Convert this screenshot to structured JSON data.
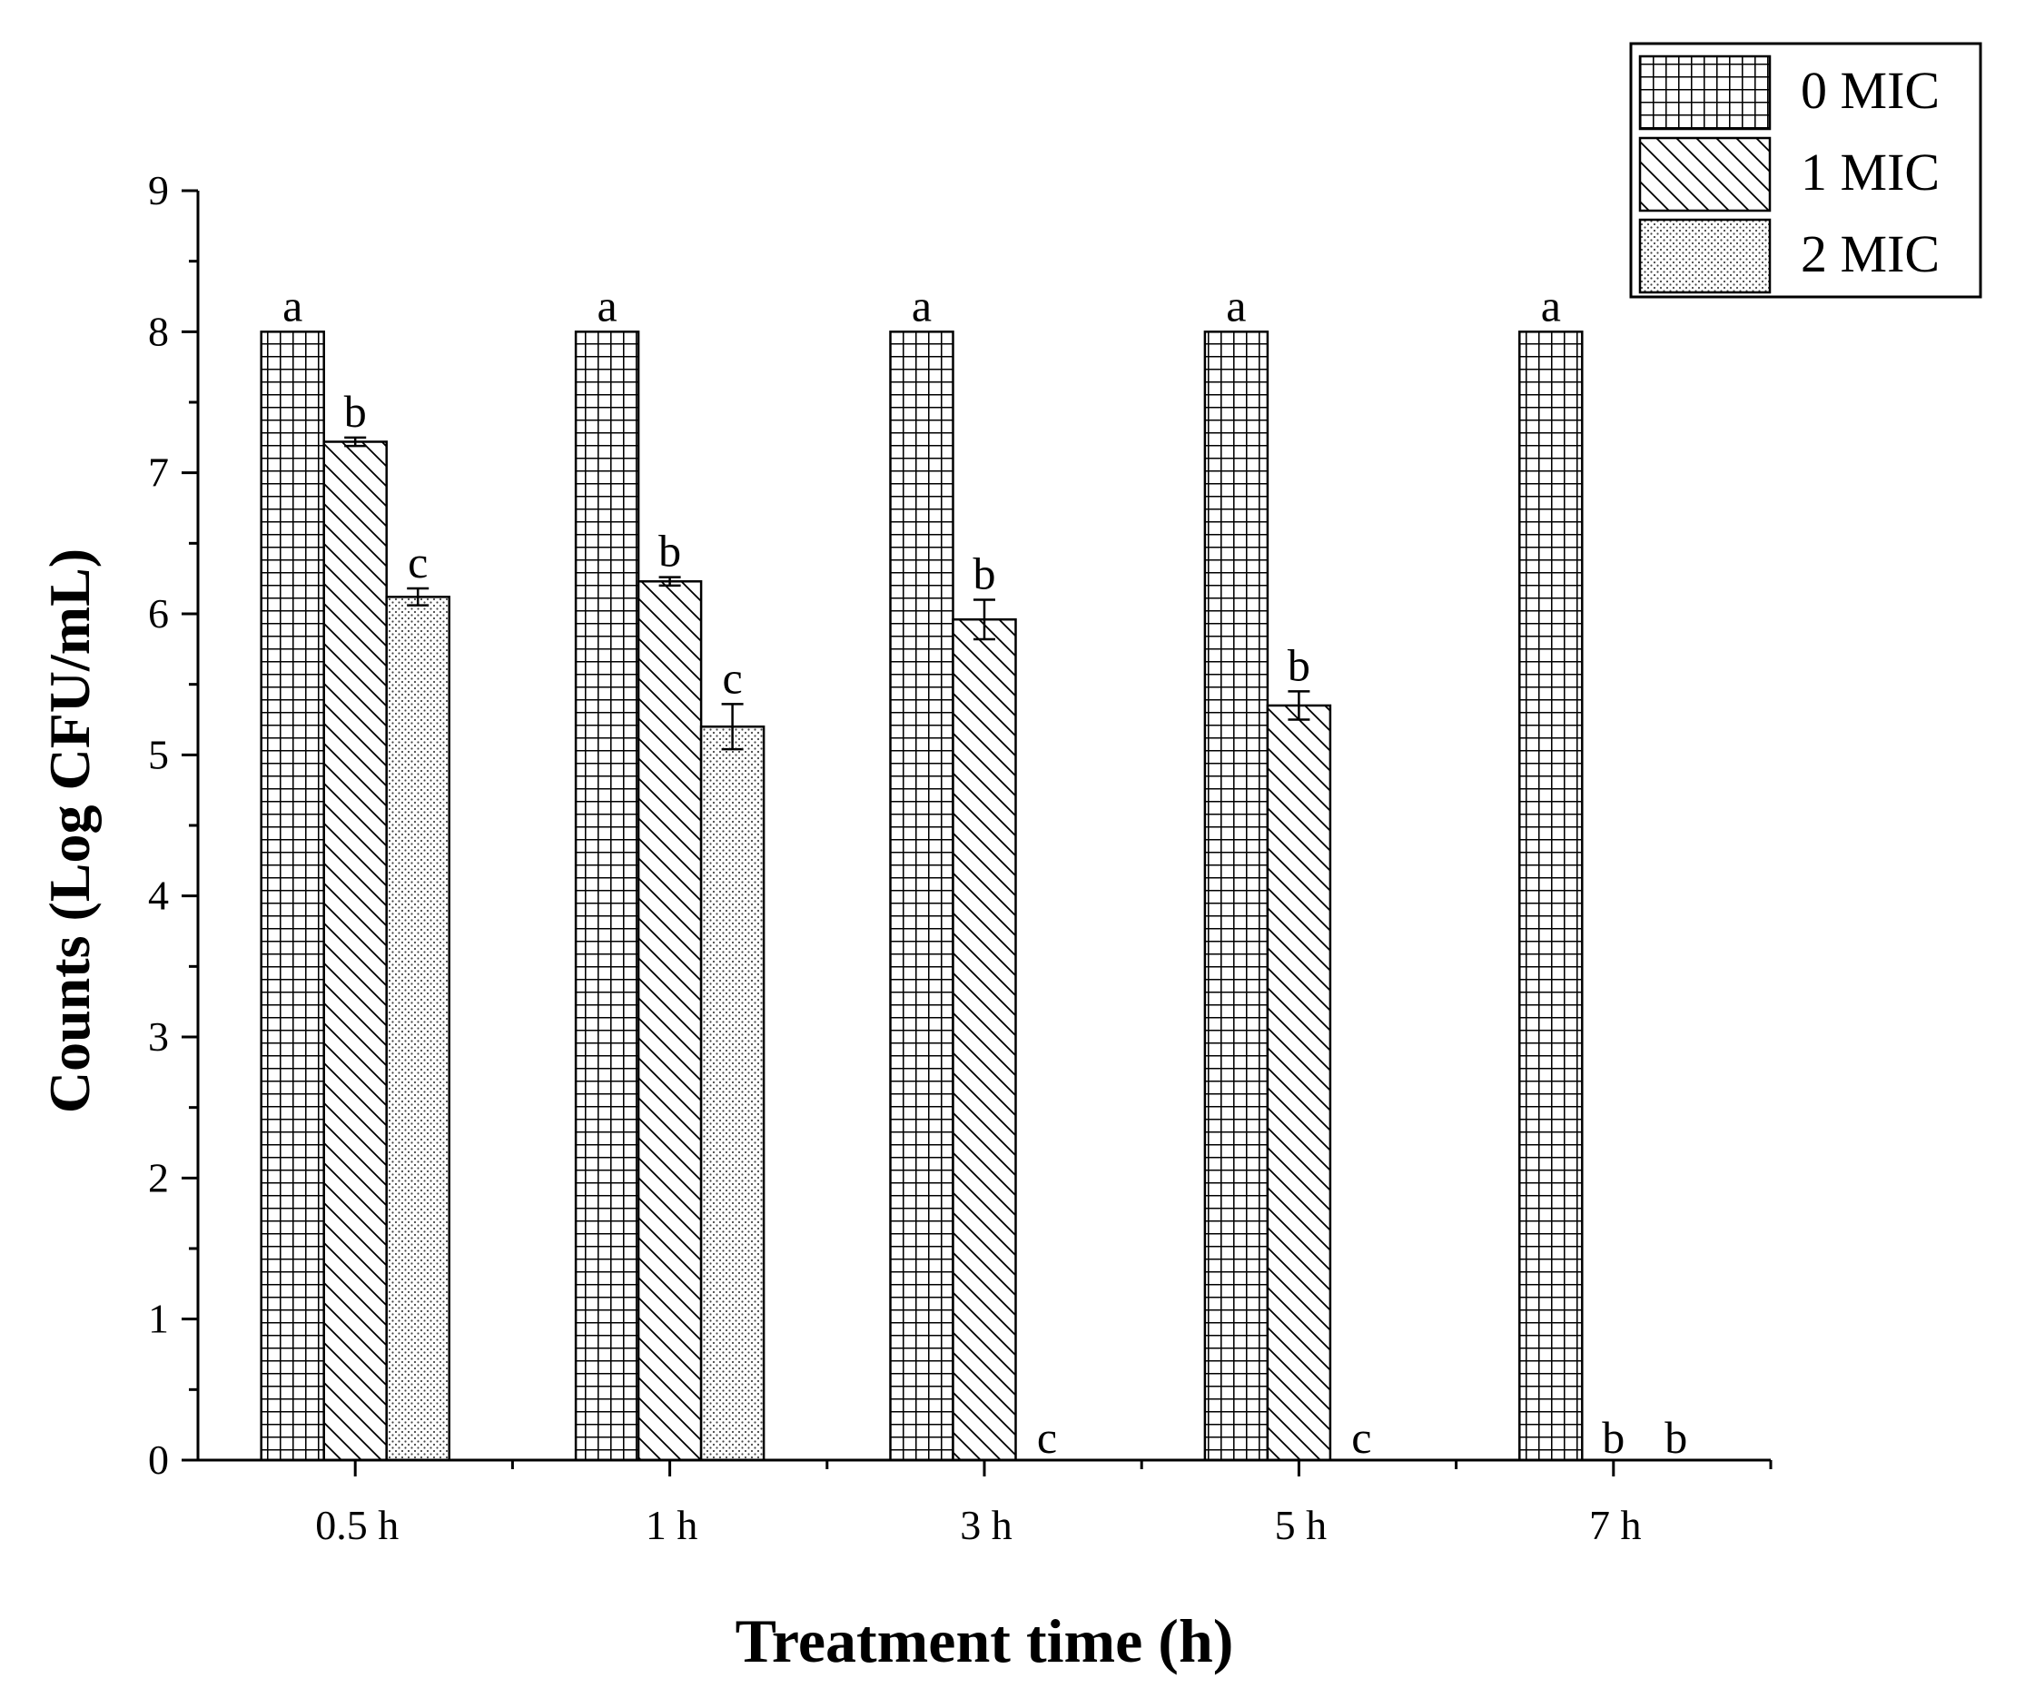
{
  "chart_data": {
    "type": "bar",
    "title": "",
    "xlabel": "Treatment time (h)",
    "ylabel": "Counts (Log CFU/mL)",
    "ylim": [
      0,
      9
    ],
    "yticks": [
      "0",
      "1",
      "2",
      "3",
      "4",
      "5",
      "6",
      "7",
      "8",
      "9"
    ],
    "categories": [
      "0.5 h",
      "1 h",
      "3 h",
      "5 h",
      "7 h"
    ],
    "legend_position": "top-right",
    "series": [
      {
        "name": "0 MIC",
        "pattern": "grid",
        "values": [
          8.0,
          8.0,
          8.0,
          8.0,
          8.0
        ],
        "errors": [
          0,
          0,
          0,
          0,
          0
        ],
        "letters": [
          "a",
          "a",
          "a",
          "a",
          "a"
        ]
      },
      {
        "name": "1 MIC",
        "pattern": "diagonal",
        "values": [
          7.22,
          6.23,
          5.96,
          5.35,
          0
        ],
        "errors": [
          0.03,
          0.03,
          0.14,
          0.1,
          0
        ],
        "letters": [
          "b",
          "b",
          "b",
          "b",
          "b"
        ]
      },
      {
        "name": "2 MIC",
        "pattern": "dots",
        "values": [
          6.12,
          5.2,
          0,
          0,
          0
        ],
        "errors": [
          0.06,
          0.16,
          0,
          0,
          0
        ],
        "letters": [
          "c",
          "c",
          "c",
          "c",
          "b"
        ]
      }
    ]
  }
}
